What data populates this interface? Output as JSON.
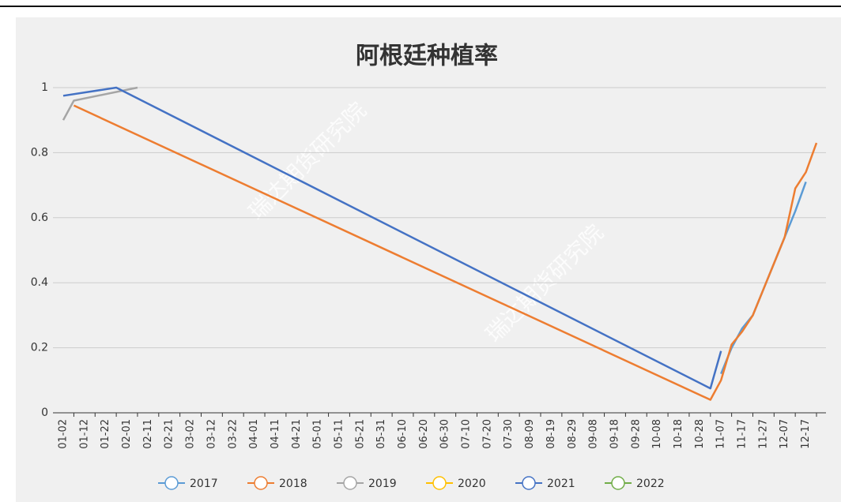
{
  "chart_data": {
    "type": "line",
    "title": "阿根廷种植率",
    "watermark": "瑞达期货研究院",
    "connect_nulls": true,
    "grid": true,
    "categories": [
      "01-02",
      null,
      "01-12",
      null,
      "01-22",
      null,
      "02-01",
      null,
      "02-11",
      null,
      "02-21",
      null,
      "03-02",
      null,
      "03-12",
      null,
      "03-22",
      null,
      "04-01",
      null,
      "04-11",
      null,
      "04-21",
      null,
      "05-01",
      null,
      "05-11",
      null,
      "05-21",
      null,
      "05-31",
      null,
      "06-10",
      null,
      "06-20",
      null,
      "06-30",
      null,
      "07-10",
      null,
      "07-20",
      null,
      "07-30",
      null,
      "08-09",
      null,
      "08-19",
      null,
      "08-29",
      null,
      "09-08",
      null,
      "09-18",
      null,
      "09-28",
      null,
      "10-08",
      null,
      "10-18",
      null,
      "10-28",
      null,
      "11-07",
      null,
      "11-17",
      null,
      "11-27",
      null,
      "12-07",
      null,
      "12-17",
      null
    ],
    "ylim": [
      0,
      1
    ],
    "yticks": [
      0,
      0.2,
      0.4,
      0.6,
      0.8,
      1
    ],
    "series": [
      {
        "name": "2017",
        "color": "#5b9bd5",
        "values": [
          null,
          null,
          null,
          null,
          null,
          null,
          null,
          null,
          null,
          null,
          null,
          null,
          null,
          null,
          null,
          null,
          null,
          null,
          null,
          null,
          null,
          null,
          null,
          null,
          null,
          null,
          null,
          null,
          null,
          null,
          null,
          null,
          null,
          null,
          null,
          null,
          null,
          null,
          null,
          null,
          null,
          null,
          null,
          null,
          null,
          null,
          null,
          null,
          null,
          null,
          null,
          null,
          null,
          null,
          null,
          null,
          null,
          null,
          null,
          null,
          null,
          null,
          0.12,
          0.2,
          0.26,
          0.3,
          0.38,
          0.46,
          0.54,
          0.62,
          0.71,
          null
        ]
      },
      {
        "name": "2018",
        "color": "#ed7d31",
        "values": [
          null,
          0.945,
          null,
          null,
          null,
          null,
          null,
          null,
          null,
          null,
          null,
          null,
          null,
          null,
          null,
          null,
          null,
          null,
          null,
          null,
          null,
          null,
          null,
          null,
          null,
          null,
          null,
          null,
          null,
          null,
          null,
          null,
          null,
          null,
          null,
          null,
          null,
          null,
          null,
          null,
          null,
          null,
          null,
          null,
          null,
          null,
          null,
          null,
          null,
          null,
          null,
          null,
          null,
          null,
          null,
          null,
          null,
          null,
          null,
          null,
          null,
          0.04,
          0.1,
          0.21,
          0.25,
          0.3,
          0.38,
          0.46,
          0.54,
          0.69,
          0.74,
          0.83
        ]
      },
      {
        "name": "2019",
        "color": "#a5a5a5",
        "values": [
          0.9,
          0.96,
          null,
          null,
          null,
          null,
          null,
          1.0,
          null,
          null,
          null,
          null,
          null,
          null,
          null,
          null,
          null,
          null,
          null,
          null,
          null,
          null,
          null,
          null,
          null,
          null,
          null,
          null,
          null,
          null,
          null,
          null,
          null,
          null,
          null,
          null,
          null,
          null,
          null,
          null,
          null,
          null,
          null,
          null,
          null,
          null,
          null,
          null,
          null,
          null,
          null,
          null,
          null,
          null,
          null,
          null,
          null,
          null,
          null,
          null,
          null,
          null,
          null,
          null,
          null,
          null,
          null,
          null,
          null,
          null,
          null,
          null
        ]
      },
      {
        "name": "2020",
        "color": "#ffc000",
        "values": [
          null,
          null,
          null,
          null,
          null,
          null,
          null,
          null,
          null,
          null,
          null,
          null,
          null,
          null,
          null,
          null,
          null,
          null,
          null,
          null,
          null,
          null,
          null,
          null,
          null,
          null,
          null,
          null,
          null,
          null,
          null,
          null,
          null,
          null,
          null,
          null,
          null,
          null,
          null,
          null,
          null,
          null,
          null,
          null,
          null,
          null,
          null,
          null,
          null,
          null,
          null,
          null,
          null,
          null,
          null,
          null,
          null,
          null,
          null,
          null,
          null,
          null,
          null,
          null,
          null,
          null,
          null,
          null,
          null,
          null,
          null,
          null
        ]
      },
      {
        "name": "2021",
        "color": "#4472c4",
        "values": [
          0.975,
          null,
          null,
          null,
          null,
          1.0,
          null,
          null,
          null,
          null,
          null,
          null,
          null,
          null,
          null,
          null,
          null,
          null,
          null,
          null,
          null,
          null,
          null,
          null,
          null,
          null,
          null,
          null,
          null,
          null,
          null,
          null,
          null,
          null,
          null,
          null,
          null,
          null,
          null,
          null,
          null,
          null,
          null,
          null,
          null,
          null,
          null,
          null,
          null,
          null,
          null,
          null,
          null,
          null,
          null,
          null,
          null,
          null,
          null,
          null,
          null,
          0.075,
          0.19,
          null,
          null,
          null,
          null,
          null,
          null,
          null,
          null,
          null
        ]
      },
      {
        "name": "2022",
        "color": "#70ad47",
        "values": [
          null,
          null,
          null,
          null,
          null,
          null,
          null,
          null,
          null,
          null,
          null,
          null,
          null,
          null,
          null,
          null,
          null,
          null,
          null,
          null,
          null,
          null,
          null,
          null,
          null,
          null,
          null,
          null,
          null,
          null,
          null,
          null,
          null,
          null,
          null,
          null,
          null,
          null,
          null,
          null,
          null,
          null,
          null,
          null,
          null,
          null,
          null,
          null,
          null,
          null,
          null,
          null,
          null,
          null,
          null,
          null,
          null,
          null,
          null,
          null,
          null,
          null,
          null,
          null,
          null,
          null,
          null,
          null,
          null,
          null,
          null,
          null
        ]
      }
    ]
  }
}
